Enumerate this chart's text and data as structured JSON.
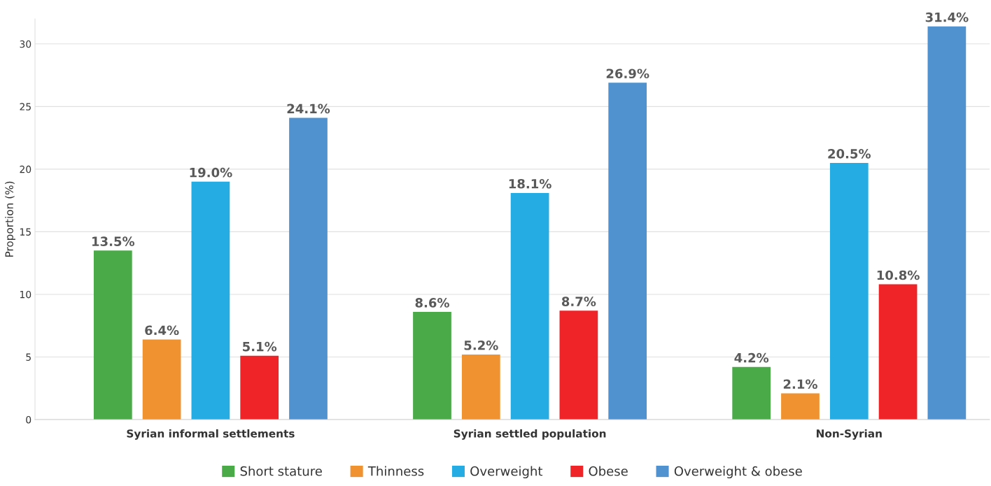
{
  "chart_data": {
    "type": "bar",
    "ylabel": "Proportion (%)",
    "categories": [
      "Syrian informal settlements",
      "Syrian settled population",
      "Non-Syrian"
    ],
    "series": [
      {
        "name": "Short stature",
        "color": "#4aaa48",
        "values": [
          13.5,
          8.6,
          4.2
        ]
      },
      {
        "name": "Thinness",
        "color": "#ef922f",
        "values": [
          6.4,
          5.2,
          2.1
        ]
      },
      {
        "name": "Overweight",
        "color": "#25ace2",
        "values": [
          19.0,
          18.1,
          20.5
        ]
      },
      {
        "name": "Obese",
        "color": "#ee2428",
        "values": [
          5.1,
          8.7,
          10.8
        ]
      },
      {
        "name": "Overweight & obese",
        "color": "#4f92cf",
        "values": [
          24.1,
          26.9,
          31.4
        ]
      }
    ],
    "value_labels": [
      [
        "13.5%",
        "8.6%",
        "4.2%"
      ],
      [
        "6.4%",
        "5.2%",
        "2.1%"
      ],
      [
        "19.0%",
        "18.1%",
        "20.5%"
      ],
      [
        "5.1%",
        "8.7%",
        "10.8%"
      ],
      [
        "24.1%",
        "26.9%",
        "31.4%"
      ]
    ],
    "ylim": [
      0,
      32
    ],
    "yticks": [
      0,
      5,
      10,
      15,
      20,
      25,
      30
    ],
    "grid": "y",
    "legend": "bottom"
  }
}
